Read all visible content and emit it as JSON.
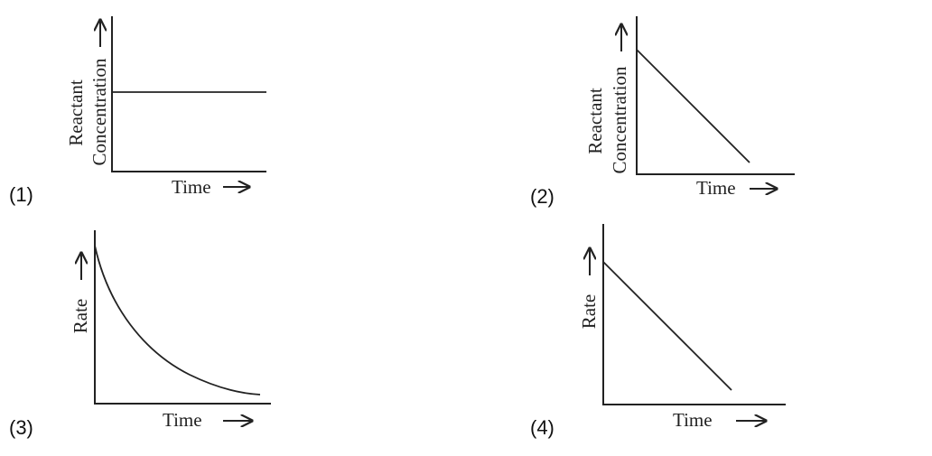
{
  "options": [
    {
      "label": "(1)",
      "x_label": "Time",
      "y_label": [
        "Reactant",
        "Concentration"
      ]
    },
    {
      "label": "(2)",
      "x_label": "Time",
      "y_label": [
        "Reactant",
        "Concentration"
      ]
    },
    {
      "label": "(3)",
      "x_label": "Time",
      "y_label": [
        "Rate"
      ]
    },
    {
      "label": "(4)",
      "x_label": "Time",
      "y_label": [
        "Rate"
      ]
    }
  ]
}
